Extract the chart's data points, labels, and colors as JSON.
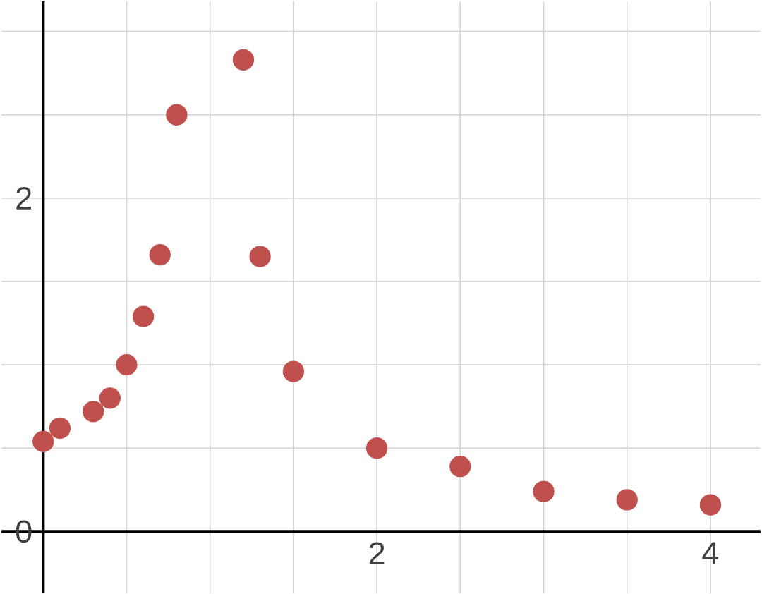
{
  "chart_data": {
    "type": "scatter",
    "x": [
      0,
      0.1,
      0.3,
      0.4,
      0.5,
      0.6,
      0.7,
      0.8,
      1.2,
      1.3,
      1.5,
      2,
      2.5,
      3,
      3.5,
      4
    ],
    "values": [
      0.54,
      0.62,
      0.72,
      0.8,
      1.0,
      1.29,
      1.66,
      2.5,
      2.83,
      1.65,
      0.96,
      0.5,
      0.39,
      0.24,
      0.19,
      0.16
    ],
    "color": "#c0504d",
    "marker": "circle",
    "grid": true,
    "xlim": [
      -0.25,
      4.3
    ],
    "ylim": [
      -0.37,
      3.18
    ],
    "xticks": [
      {
        "value": 0,
        "label": null
      },
      {
        "value": 0.5,
        "label": null
      },
      {
        "value": 1,
        "label": null
      },
      {
        "value": 1.5,
        "label": null
      },
      2,
      {
        "value": 2.5,
        "label": null
      },
      {
        "value": 3,
        "label": null
      },
      {
        "value": 3.5,
        "label": null
      },
      4
    ],
    "yticks": [
      0,
      {
        "value": 0.5,
        "label": null
      },
      {
        "value": 1,
        "label": null
      },
      {
        "value": 1.5,
        "label": null
      },
      2,
      {
        "value": 2.5,
        "label": null
      },
      {
        "value": 3,
        "label": null
      }
    ]
  }
}
